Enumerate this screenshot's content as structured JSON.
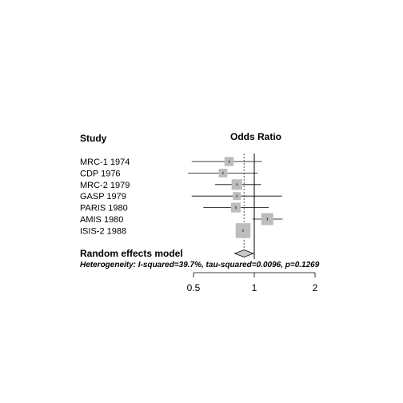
{
  "chart_data": {
    "type": "forest",
    "study_header": "Study",
    "effect_header": "Odds Ratio",
    "x_scale": "log",
    "x_ticks": [
      0.5,
      1,
      2
    ],
    "x_tick_labels": [
      "0.5",
      "1",
      "2"
    ],
    "xlim": [
      0.5,
      2
    ],
    "null_value": 1,
    "pooled_reference": 0.89,
    "studies": [
      {
        "label": "MRC-1 1974",
        "or": 0.75,
        "lower": 0.49,
        "upper": 1.09,
        "weight": 0.05
      },
      {
        "label": "CDP 1976",
        "or": 0.7,
        "lower": 0.47,
        "upper": 1.04,
        "weight": 0.04
      },
      {
        "label": "MRC-2 1979",
        "or": 0.82,
        "lower": 0.64,
        "upper": 1.08,
        "weight": 0.08
      },
      {
        "label": "GASP 1979",
        "or": 0.82,
        "lower": 0.49,
        "upper": 1.37,
        "weight": 0.03
      },
      {
        "label": "PARIS 1980",
        "or": 0.81,
        "lower": 0.56,
        "upper": 1.18,
        "weight": 0.06
      },
      {
        "label": "AMIS 1980",
        "or": 1.16,
        "lower": 0.98,
        "upper": 1.38,
        "weight": 0.12
      },
      {
        "label": "ISIS-2 1988",
        "or": 0.88,
        "lower": 0.82,
        "upper": 0.94,
        "weight": 0.22
      }
    ],
    "summary": {
      "label": "Random effects model",
      "or": 0.89,
      "lower": 0.8,
      "upper": 0.99
    },
    "heterogeneity": "Heterogeneity: I-squared=39.7%, tau-squared=0.0096, p=0.1269"
  }
}
